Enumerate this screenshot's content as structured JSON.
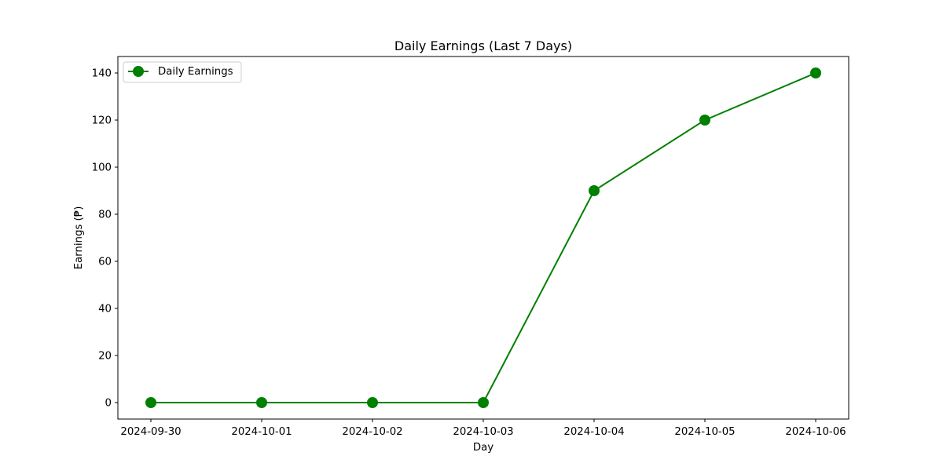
{
  "chart_data": {
    "type": "line",
    "title": "Daily Earnings (Last 7 Days)",
    "xlabel": "Day",
    "ylabel": "Earnings (₱)",
    "categories": [
      "2024-09-30",
      "2024-10-01",
      "2024-10-02",
      "2024-10-03",
      "2024-10-04",
      "2024-10-05",
      "2024-10-06"
    ],
    "series": [
      {
        "name": "Daily Earnings",
        "values": [
          0,
          0,
          0,
          0,
          90,
          120,
          140
        ],
        "color": "#008000",
        "marker": "circle"
      }
    ],
    "ylim": [
      -7,
      147
    ],
    "yticks": [
      "0",
      "20",
      "40",
      "60",
      "80",
      "100",
      "120",
      "140"
    ],
    "grid": false,
    "legend_position": "top-left"
  }
}
